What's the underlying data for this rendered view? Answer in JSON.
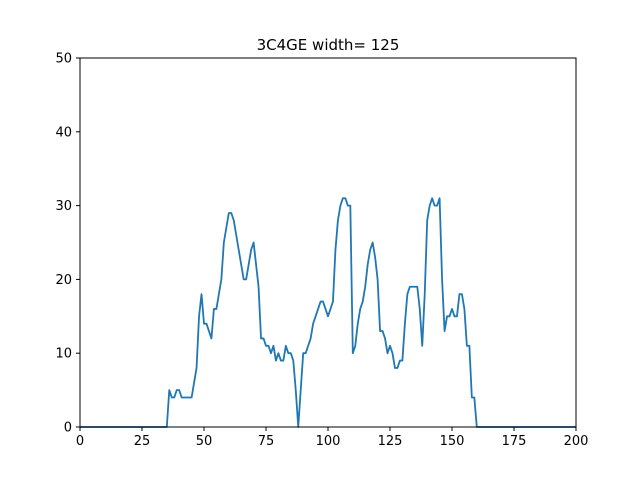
{
  "chart_data": {
    "type": "line",
    "title": "3C4GE width= 125",
    "xlabel": "",
    "ylabel": "",
    "xlim": [
      0,
      200
    ],
    "ylim": [
      0,
      50
    ],
    "xticks": [
      0,
      25,
      50,
      75,
      100,
      125,
      150,
      175,
      200
    ],
    "yticks": [
      0,
      10,
      20,
      30,
      40,
      50
    ],
    "grid": false,
    "line_color": "#1f77b4",
    "series": [
      {
        "x": [
          0,
          1,
          2,
          3,
          4,
          5,
          6,
          7,
          8,
          9,
          10,
          11,
          12,
          13,
          14,
          15,
          16,
          17,
          18,
          19,
          20,
          21,
          22,
          23,
          24,
          25,
          26,
          27,
          28,
          29,
          30,
          31,
          32,
          33,
          34,
          35,
          36,
          37,
          38,
          39,
          40,
          41,
          42,
          43,
          44,
          45,
          46,
          47,
          48,
          49,
          50,
          51,
          52,
          53,
          54,
          55,
          56,
          57,
          58,
          59,
          60,
          61,
          62,
          63,
          64,
          65,
          66,
          67,
          68,
          69,
          70,
          71,
          72,
          73,
          74,
          75,
          76,
          77,
          78,
          79,
          80,
          81,
          82,
          83,
          84,
          85,
          86,
          87,
          88,
          89,
          90,
          91,
          92,
          93,
          94,
          95,
          96,
          97,
          98,
          99,
          100,
          101,
          102,
          103,
          104,
          105,
          106,
          107,
          108,
          109,
          110,
          111,
          112,
          113,
          114,
          115,
          116,
          117,
          118,
          119,
          120,
          121,
          122,
          123,
          124,
          125,
          126,
          127,
          128,
          129,
          130,
          131,
          132,
          133,
          134,
          135,
          136,
          137,
          138,
          139,
          140,
          141,
          142,
          143,
          144,
          145,
          146,
          147,
          148,
          149,
          150,
          151,
          152,
          153,
          154,
          155,
          156,
          157,
          158,
          159,
          160,
          161,
          162,
          163,
          164,
          165,
          166,
          167,
          168,
          169,
          170,
          171,
          172,
          173,
          174,
          175,
          176,
          177,
          178,
          179,
          180,
          181,
          182,
          183,
          184,
          185,
          186,
          187,
          188,
          189,
          190,
          191,
          192,
          193,
          194,
          195,
          196,
          197,
          198,
          199,
          200
        ],
        "y": [
          0,
          0,
          0,
          0,
          0,
          0,
          0,
          0,
          0,
          0,
          0,
          0,
          0,
          0,
          0,
          0,
          0,
          0,
          0,
          0,
          0,
          0,
          0,
          0,
          0,
          0,
          0,
          0,
          0,
          0,
          0,
          0,
          0,
          0,
          0,
          0,
          5,
          4,
          4,
          5,
          5,
          4,
          4,
          4,
          4,
          4,
          6,
          8,
          15,
          18,
          14,
          14,
          13,
          12,
          16,
          16,
          18,
          20,
          25,
          27,
          29,
          29,
          28,
          26,
          24,
          22,
          20,
          20,
          22,
          24,
          25,
          22,
          19,
          12,
          12,
          11,
          11,
          10,
          11,
          9,
          10,
          9,
          9,
          11,
          10,
          10,
          9,
          5,
          0,
          5,
          10,
          10,
          11,
          12,
          14,
          15,
          16,
          17,
          17,
          16,
          15,
          16,
          17,
          24,
          28,
          30,
          31,
          31,
          30,
          30,
          10,
          11,
          14,
          16,
          17,
          19,
          22,
          24,
          25,
          23,
          20,
          13,
          13,
          12,
          10,
          11,
          10,
          8,
          8,
          9,
          9,
          14,
          18,
          19,
          19,
          19,
          19,
          16,
          11,
          18,
          28,
          30,
          31,
          30,
          30,
          31,
          20,
          13,
          15,
          15,
          16,
          15,
          15,
          18,
          18,
          16,
          11,
          11,
          4,
          4,
          0,
          0,
          0,
          0,
          0,
          0,
          0,
          0,
          0,
          0,
          0,
          0,
          0,
          0,
          0,
          0,
          0,
          0,
          0,
          0,
          0,
          0,
          0,
          0,
          0,
          0,
          0,
          0,
          0,
          0,
          0,
          0,
          0,
          0,
          0,
          0,
          0,
          0,
          0,
          0,
          0
        ]
      }
    ]
  }
}
